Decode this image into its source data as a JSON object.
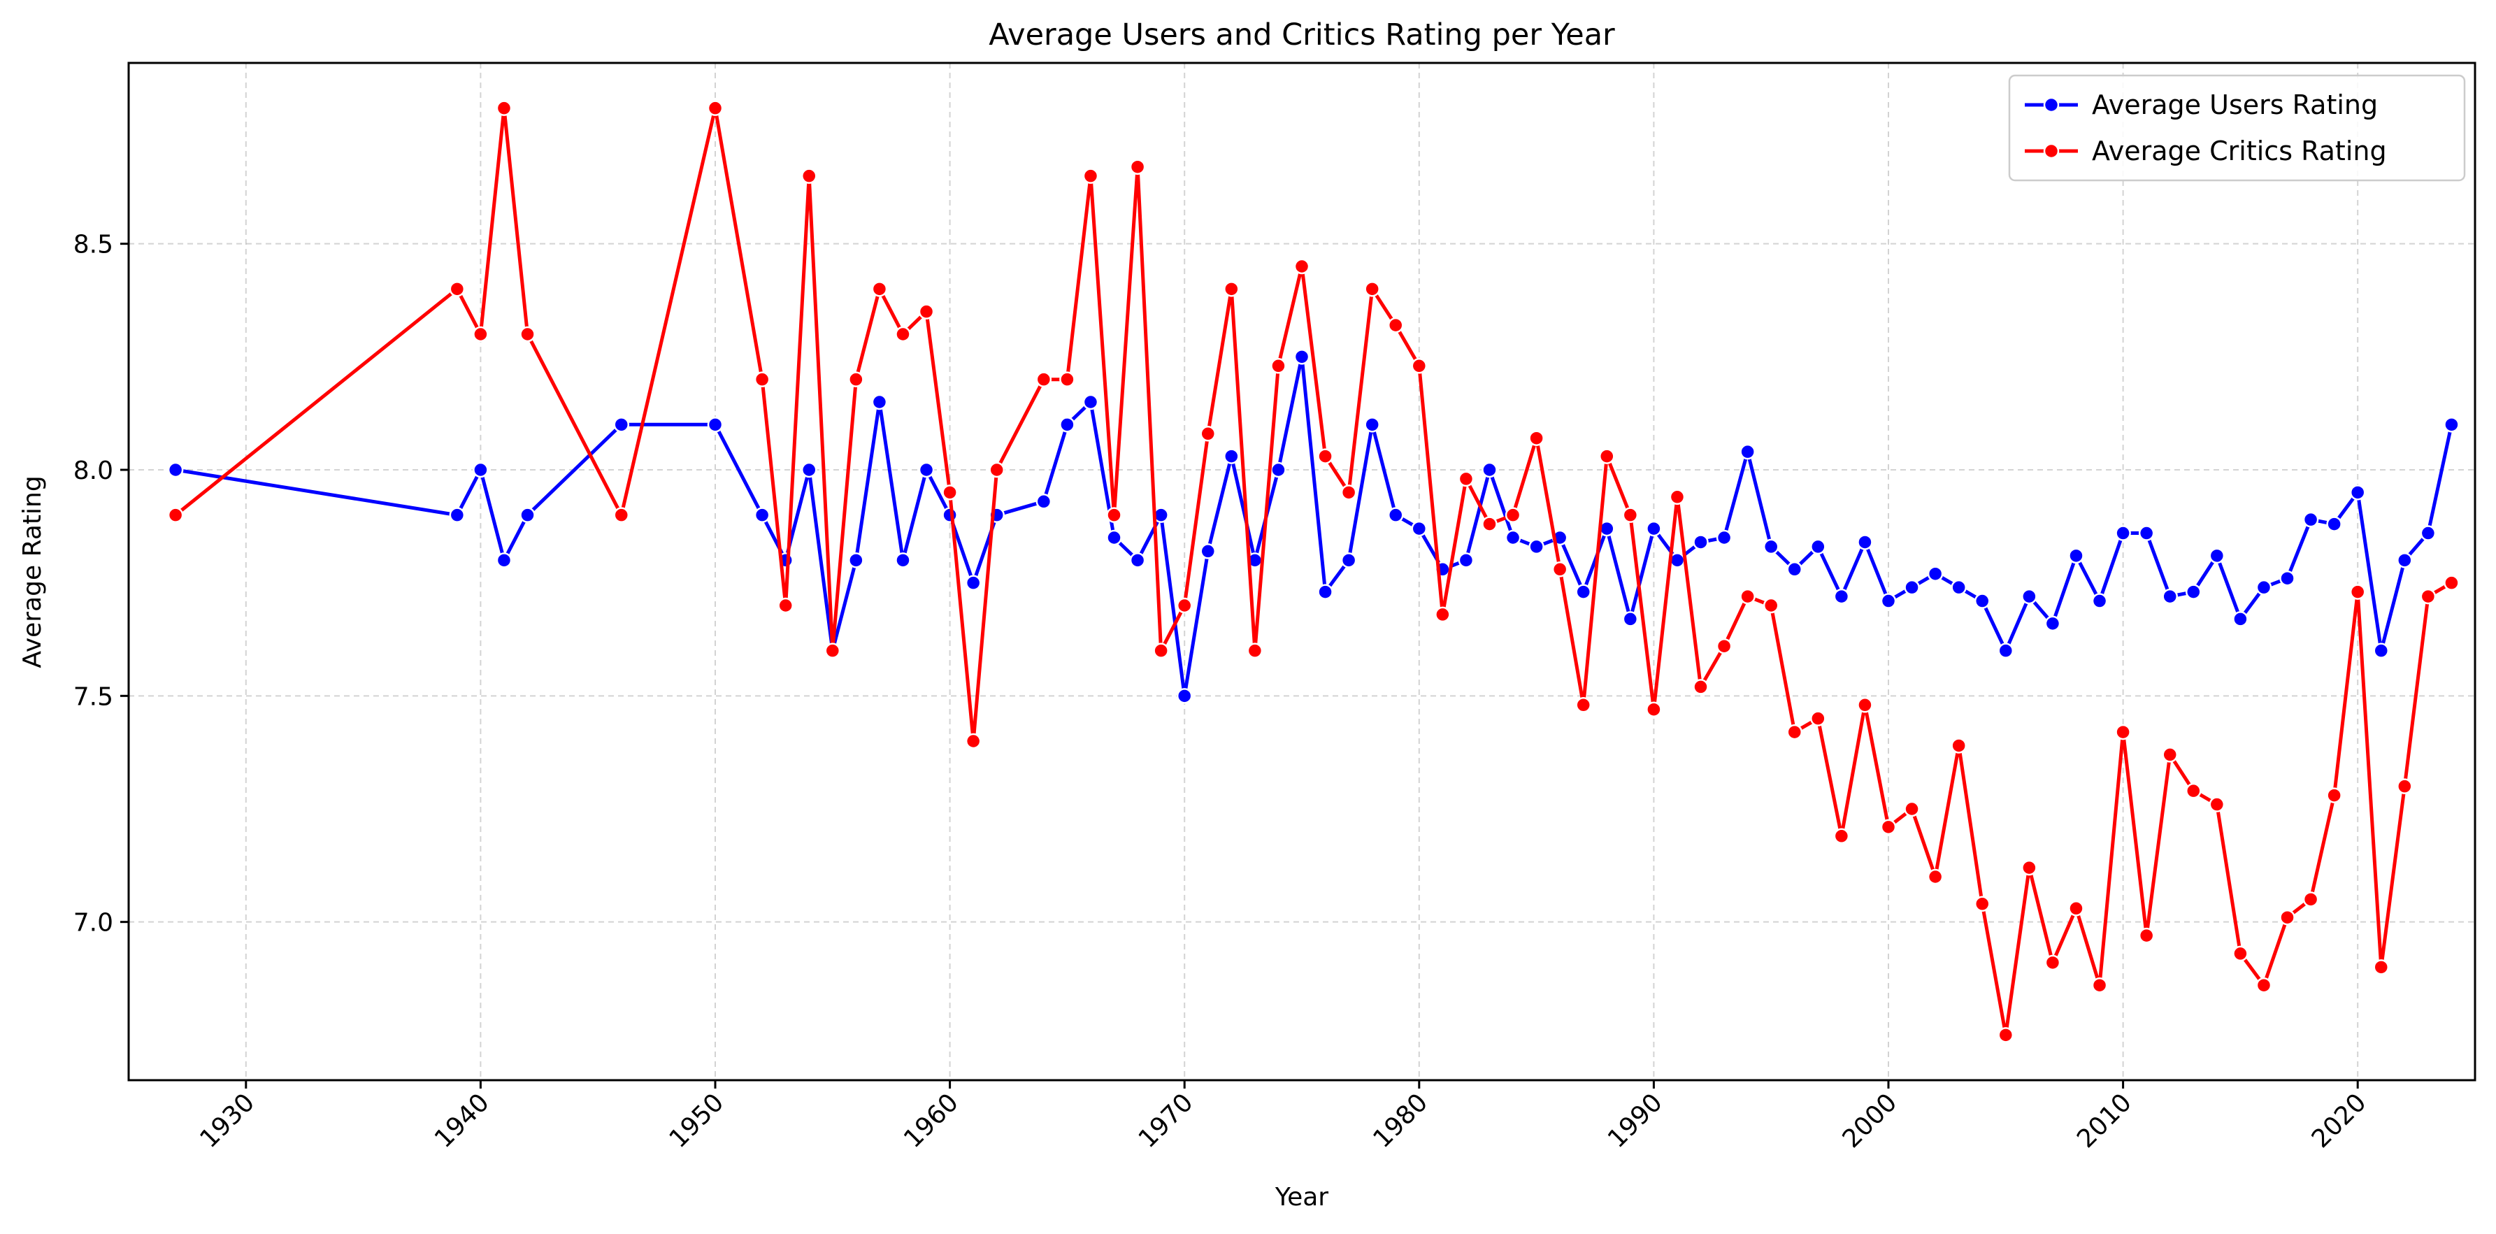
{
  "chart_data": {
    "type": "line",
    "title": "Average Users and Critics Rating per Year",
    "xlabel": "Year",
    "ylabel": "Average Rating",
    "xlim": [
      1925,
      2025
    ],
    "ylim": [
      6.65,
      8.9
    ],
    "xticks": [
      1930,
      1940,
      1950,
      1960,
      1970,
      1980,
      1990,
      2000,
      2010,
      2020
    ],
    "yticks": [
      7.0,
      7.5,
      8.0,
      8.5
    ],
    "grid": true,
    "legend_position": "top-right",
    "series": [
      {
        "name": "Average Users Rating",
        "color": "#0000ff",
        "marker": "circle",
        "points": [
          [
            1927,
            8.0
          ],
          [
            1939,
            7.9
          ],
          [
            1940,
            8.0
          ],
          [
            1941,
            7.8
          ],
          [
            1942,
            7.9
          ],
          [
            1946,
            8.1
          ],
          [
            1950,
            8.1
          ],
          [
            1952,
            7.9
          ],
          [
            1953,
            7.8
          ],
          [
            1954,
            8.0
          ],
          [
            1955,
            7.6
          ],
          [
            1956,
            7.8
          ],
          [
            1957,
            8.15
          ],
          [
            1958,
            7.8
          ],
          [
            1959,
            8.0
          ],
          [
            1960,
            7.9
          ],
          [
            1961,
            7.75
          ],
          [
            1962,
            7.9
          ],
          [
            1964,
            7.93
          ],
          [
            1965,
            8.1
          ],
          [
            1966,
            8.15
          ],
          [
            1967,
            7.85
          ],
          [
            1968,
            7.8
          ],
          [
            1969,
            7.9
          ],
          [
            1970,
            7.5
          ],
          [
            1971,
            7.82
          ],
          [
            1972,
            8.03
          ],
          [
            1973,
            7.8
          ],
          [
            1974,
            8.0
          ],
          [
            1975,
            8.25
          ],
          [
            1976,
            7.73
          ],
          [
            1977,
            7.8
          ],
          [
            1978,
            8.1
          ],
          [
            1979,
            7.9
          ],
          [
            1980,
            7.87
          ],
          [
            1981,
            7.78
          ],
          [
            1982,
            7.8
          ],
          [
            1983,
            8.0
          ],
          [
            1984,
            7.85
          ],
          [
            1985,
            7.83
          ],
          [
            1986,
            7.85
          ],
          [
            1987,
            7.73
          ],
          [
            1988,
            7.87
          ],
          [
            1989,
            7.67
          ],
          [
            1990,
            7.87
          ],
          [
            1991,
            7.8
          ],
          [
            1992,
            7.84
          ],
          [
            1993,
            7.85
          ],
          [
            1994,
            8.04
          ],
          [
            1995,
            7.83
          ],
          [
            1996,
            7.78
          ],
          [
            1997,
            7.83
          ],
          [
            1998,
            7.72
          ],
          [
            1999,
            7.84
          ],
          [
            2000,
            7.71
          ],
          [
            2001,
            7.74
          ],
          [
            2002,
            7.77
          ],
          [
            2003,
            7.74
          ],
          [
            2004,
            7.71
          ],
          [
            2005,
            7.6
          ],
          [
            2006,
            7.72
          ],
          [
            2007,
            7.66
          ],
          [
            2008,
            7.81
          ],
          [
            2009,
            7.71
          ],
          [
            2010,
            7.86
          ],
          [
            2011,
            7.86
          ],
          [
            2012,
            7.72
          ],
          [
            2013,
            7.73
          ],
          [
            2014,
            7.81
          ],
          [
            2015,
            7.67
          ],
          [
            2016,
            7.74
          ],
          [
            2017,
            7.76
          ],
          [
            2018,
            7.89
          ],
          [
            2019,
            7.88
          ],
          [
            2020,
            7.95
          ],
          [
            2021,
            7.6
          ],
          [
            2022,
            7.8
          ],
          [
            2023,
            7.86
          ],
          [
            2024,
            8.1
          ]
        ]
      },
      {
        "name": "Average Critics Rating",
        "color": "#ff0000",
        "marker": "circle",
        "points": [
          [
            1927,
            7.9
          ],
          [
            1939,
            8.4
          ],
          [
            1940,
            8.3
          ],
          [
            1941,
            8.8
          ],
          [
            1942,
            8.3
          ],
          [
            1946,
            7.9
          ],
          [
            1950,
            8.8
          ],
          [
            1952,
            8.2
          ],
          [
            1953,
            7.7
          ],
          [
            1954,
            8.65
          ],
          [
            1955,
            7.6
          ],
          [
            1956,
            8.2
          ],
          [
            1957,
            8.4
          ],
          [
            1958,
            8.3
          ],
          [
            1959,
            8.35
          ],
          [
            1960,
            7.95
          ],
          [
            1961,
            7.4
          ],
          [
            1962,
            8.0
          ],
          [
            1964,
            8.2
          ],
          [
            1965,
            8.2
          ],
          [
            1966,
            8.65
          ],
          [
            1967,
            7.9
          ],
          [
            1968,
            8.67
          ],
          [
            1969,
            7.6
          ],
          [
            1970,
            7.7
          ],
          [
            1971,
            8.08
          ],
          [
            1972,
            8.4
          ],
          [
            1973,
            7.6
          ],
          [
            1974,
            8.23
          ],
          [
            1975,
            8.45
          ],
          [
            1976,
            8.03
          ],
          [
            1977,
            7.95
          ],
          [
            1978,
            8.4
          ],
          [
            1979,
            8.32
          ],
          [
            1980,
            8.23
          ],
          [
            1981,
            7.68
          ],
          [
            1982,
            7.98
          ],
          [
            1983,
            7.88
          ],
          [
            1984,
            7.9
          ],
          [
            1985,
            8.07
          ],
          [
            1986,
            7.78
          ],
          [
            1987,
            7.48
          ],
          [
            1988,
            8.03
          ],
          [
            1989,
            7.9
          ],
          [
            1990,
            7.47
          ],
          [
            1991,
            7.94
          ],
          [
            1992,
            7.52
          ],
          [
            1993,
            7.61
          ],
          [
            1994,
            7.72
          ],
          [
            1995,
            7.7
          ],
          [
            1996,
            7.42
          ],
          [
            1997,
            7.45
          ],
          [
            1998,
            7.19
          ],
          [
            1999,
            7.48
          ],
          [
            2000,
            7.21
          ],
          [
            2001,
            7.25
          ],
          [
            2002,
            7.1
          ],
          [
            2003,
            7.39
          ],
          [
            2004,
            7.04
          ],
          [
            2005,
            6.75
          ],
          [
            2006,
            7.12
          ],
          [
            2007,
            6.91
          ],
          [
            2008,
            7.03
          ],
          [
            2009,
            6.86
          ],
          [
            2010,
            7.42
          ],
          [
            2011,
            6.97
          ],
          [
            2012,
            7.37
          ],
          [
            2013,
            7.29
          ],
          [
            2014,
            7.26
          ],
          [
            2015,
            6.93
          ],
          [
            2016,
            6.86
          ],
          [
            2017,
            7.01
          ],
          [
            2018,
            7.05
          ],
          [
            2019,
            7.28
          ],
          [
            2020,
            7.73
          ],
          [
            2021,
            6.9
          ],
          [
            2022,
            7.3
          ],
          [
            2023,
            7.72
          ],
          [
            2024,
            7.75
          ]
        ]
      }
    ]
  }
}
